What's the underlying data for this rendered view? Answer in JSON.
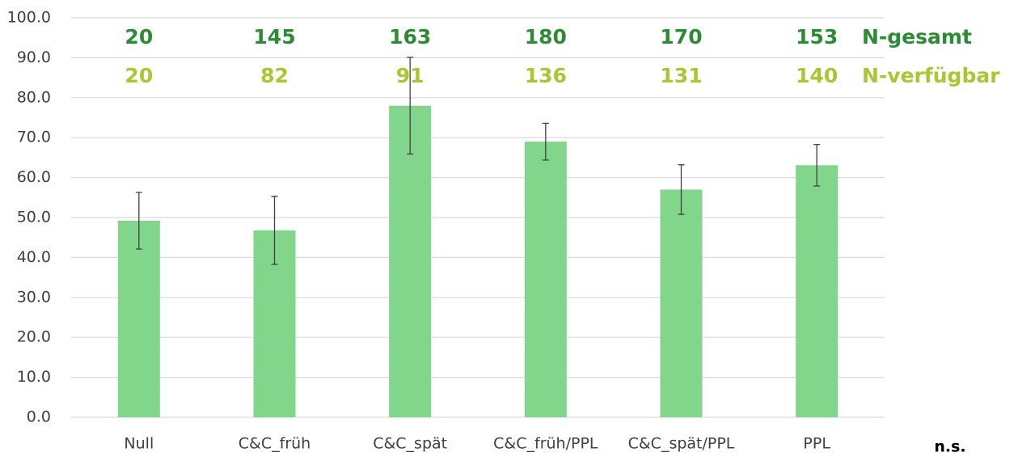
{
  "chart_data": {
    "type": "bar",
    "categories": [
      "Null",
      "C&C_früh",
      "C&C_spät",
      "C&C_früh/PPL",
      "C&C_spät/PPL",
      "PPL"
    ],
    "values": [
      49.2,
      46.8,
      78.0,
      69.0,
      57.0,
      63.1
    ],
    "errors": [
      7.1,
      8.5,
      12.1,
      4.6,
      6.2,
      5.2
    ],
    "color": "#82d68c",
    "error_color": "#404040",
    "ylim": [
      0,
      100
    ],
    "yticks": [
      {
        "value": 0,
        "label": "0.0"
      },
      {
        "value": 10,
        "label": "10.0"
      },
      {
        "value": 20,
        "label": "20.0"
      },
      {
        "value": 30,
        "label": "30.0"
      },
      {
        "value": 40,
        "label": "40.0"
      },
      {
        "value": 50,
        "label": "50.0"
      },
      {
        "value": 60,
        "label": "60.0"
      },
      {
        "value": 70,
        "label": "70.0"
      },
      {
        "value": 80,
        "label": "80.0"
      },
      {
        "value": 90,
        "label": "90.0"
      },
      {
        "value": 100,
        "label": "100.0"
      }
    ],
    "grid": true,
    "annotation_rows": [
      {
        "name": "N-gesamt",
        "color": "#2e8b35",
        "values": [
          20,
          145,
          163,
          180,
          170,
          153
        ]
      },
      {
        "name": "N-verfügbar",
        "color": "#a6c832",
        "values": [
          20,
          82,
          91,
          136,
          131,
          140
        ]
      }
    ],
    "note": "n.s."
  }
}
